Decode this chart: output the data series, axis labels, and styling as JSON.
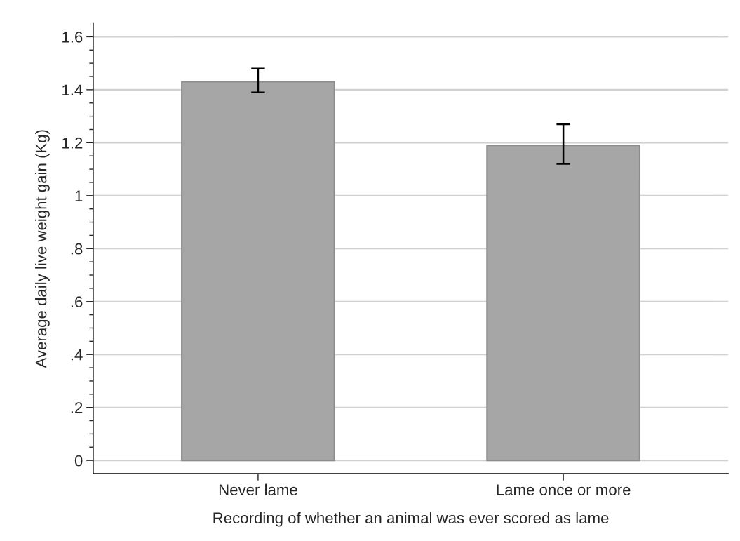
{
  "chart_data": {
    "type": "bar",
    "xlabel": "Recording of whether an animal was ever scored as lame",
    "ylabel": "Average daily live weight gain (Kg)",
    "categories": [
      "Never lame",
      "Lame once or more"
    ],
    "values": [
      1.43,
      1.19
    ],
    "color": "#a6a6a6",
    "errors": [
      [
        1.39,
        1.48
      ],
      [
        1.12,
        1.27
      ]
    ],
    "ylim": [
      -0.05,
      1.65
    ],
    "yticks": [
      {
        "value": 0,
        "label": "0"
      },
      {
        "value": 0.05,
        "label": null
      },
      {
        "value": 0.1,
        "label": null
      },
      {
        "value": 0.15,
        "label": null
      },
      {
        "value": 0.2,
        "label": ".2"
      },
      {
        "value": 0.25,
        "label": null
      },
      {
        "value": 0.3,
        "label": null
      },
      {
        "value": 0.35,
        "label": null
      },
      {
        "value": 0.4,
        "label": ".4"
      },
      {
        "value": 0.45,
        "label": null
      },
      {
        "value": 0.5,
        "label": null
      },
      {
        "value": 0.55,
        "label": null
      },
      {
        "value": 0.6,
        "label": ".6"
      },
      {
        "value": 0.65,
        "label": null
      },
      {
        "value": 0.7,
        "label": null
      },
      {
        "value": 0.75,
        "label": null
      },
      {
        "value": 0.8,
        "label": ".8"
      },
      {
        "value": 0.85,
        "label": null
      },
      {
        "value": 0.9,
        "label": null
      },
      {
        "value": 0.95,
        "label": null
      },
      {
        "value": 1,
        "label": "1"
      },
      {
        "value": 1.05,
        "label": null
      },
      {
        "value": 1.1,
        "label": null
      },
      {
        "value": 1.15,
        "label": null
      },
      {
        "value": 1.2,
        "label": "1.2"
      },
      {
        "value": 1.25,
        "label": null
      },
      {
        "value": 1.3,
        "label": null
      },
      {
        "value": 1.35,
        "label": null
      },
      {
        "value": 1.4,
        "label": "1.4"
      },
      {
        "value": 1.45,
        "label": null
      },
      {
        "value": 1.5,
        "label": null
      },
      {
        "value": 1.55,
        "label": null
      },
      {
        "value": 1.6,
        "label": "1.6"
      }
    ],
    "grid": "y",
    "legend": false
  }
}
